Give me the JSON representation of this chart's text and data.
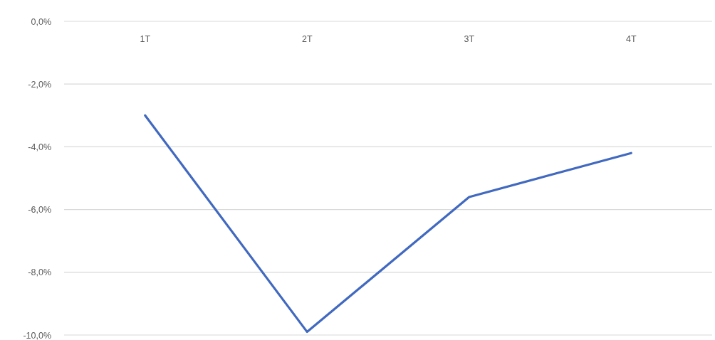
{
  "chart_data": {
    "type": "line",
    "categories": [
      "1T",
      "2T",
      "3T",
      "4T"
    ],
    "series": [
      {
        "color": "#4169c0",
        "values": [
          -3.0,
          -9.9,
          -5.6,
          -4.2
        ]
      }
    ],
    "ylim": [
      -10,
      0
    ],
    "yticks": [
      {
        "value": 0,
        "label": "0,0%"
      },
      {
        "value": -2,
        "label": "-2,0%"
      },
      {
        "value": -4,
        "label": "-4,0%"
      },
      {
        "value": -6,
        "label": "-6,0%"
      },
      {
        "value": -8,
        "label": "-8,0%"
      },
      {
        "value": -10,
        "label": "-10,0%"
      }
    ],
    "grid": "y",
    "line_style": "solid"
  }
}
